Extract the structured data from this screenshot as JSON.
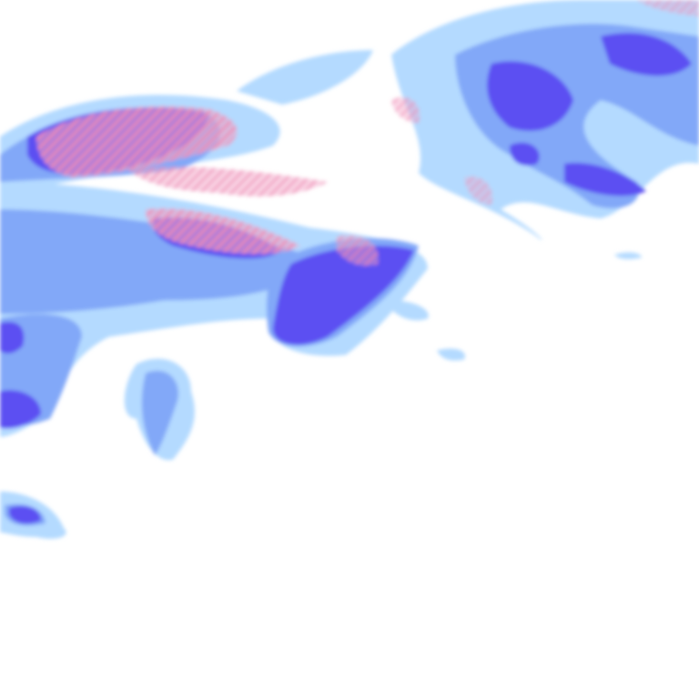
{
  "map": {
    "layer": "precipitation-radar",
    "colors": {
      "background": "#ffffff",
      "light_rain": "#b4daff",
      "moderate_rain": "#82a8f8",
      "heavy_rain": "#5b4ff2",
      "mixed_snow": "#f2a2c4"
    }
  }
}
